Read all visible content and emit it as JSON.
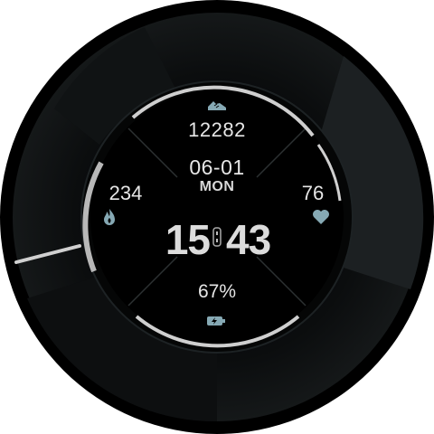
{
  "watchface": {
    "steps": "12282",
    "date": "06-01",
    "weekday": "MON",
    "calories": "234",
    "heart_rate": "76",
    "time_hour": "15",
    "time_minute": "43",
    "battery": "67%"
  },
  "icons": {
    "steps": "shoe-icon",
    "calories": "flame-icon",
    "heart_rate": "heart-icon",
    "battery": "battery-charging-icon"
  },
  "colors": {
    "background": "#000000",
    "bezel": "#121516",
    "text": "#e6e6e6",
    "accent_icon": "#86a9b4",
    "ring": "#c8c8c8"
  }
}
